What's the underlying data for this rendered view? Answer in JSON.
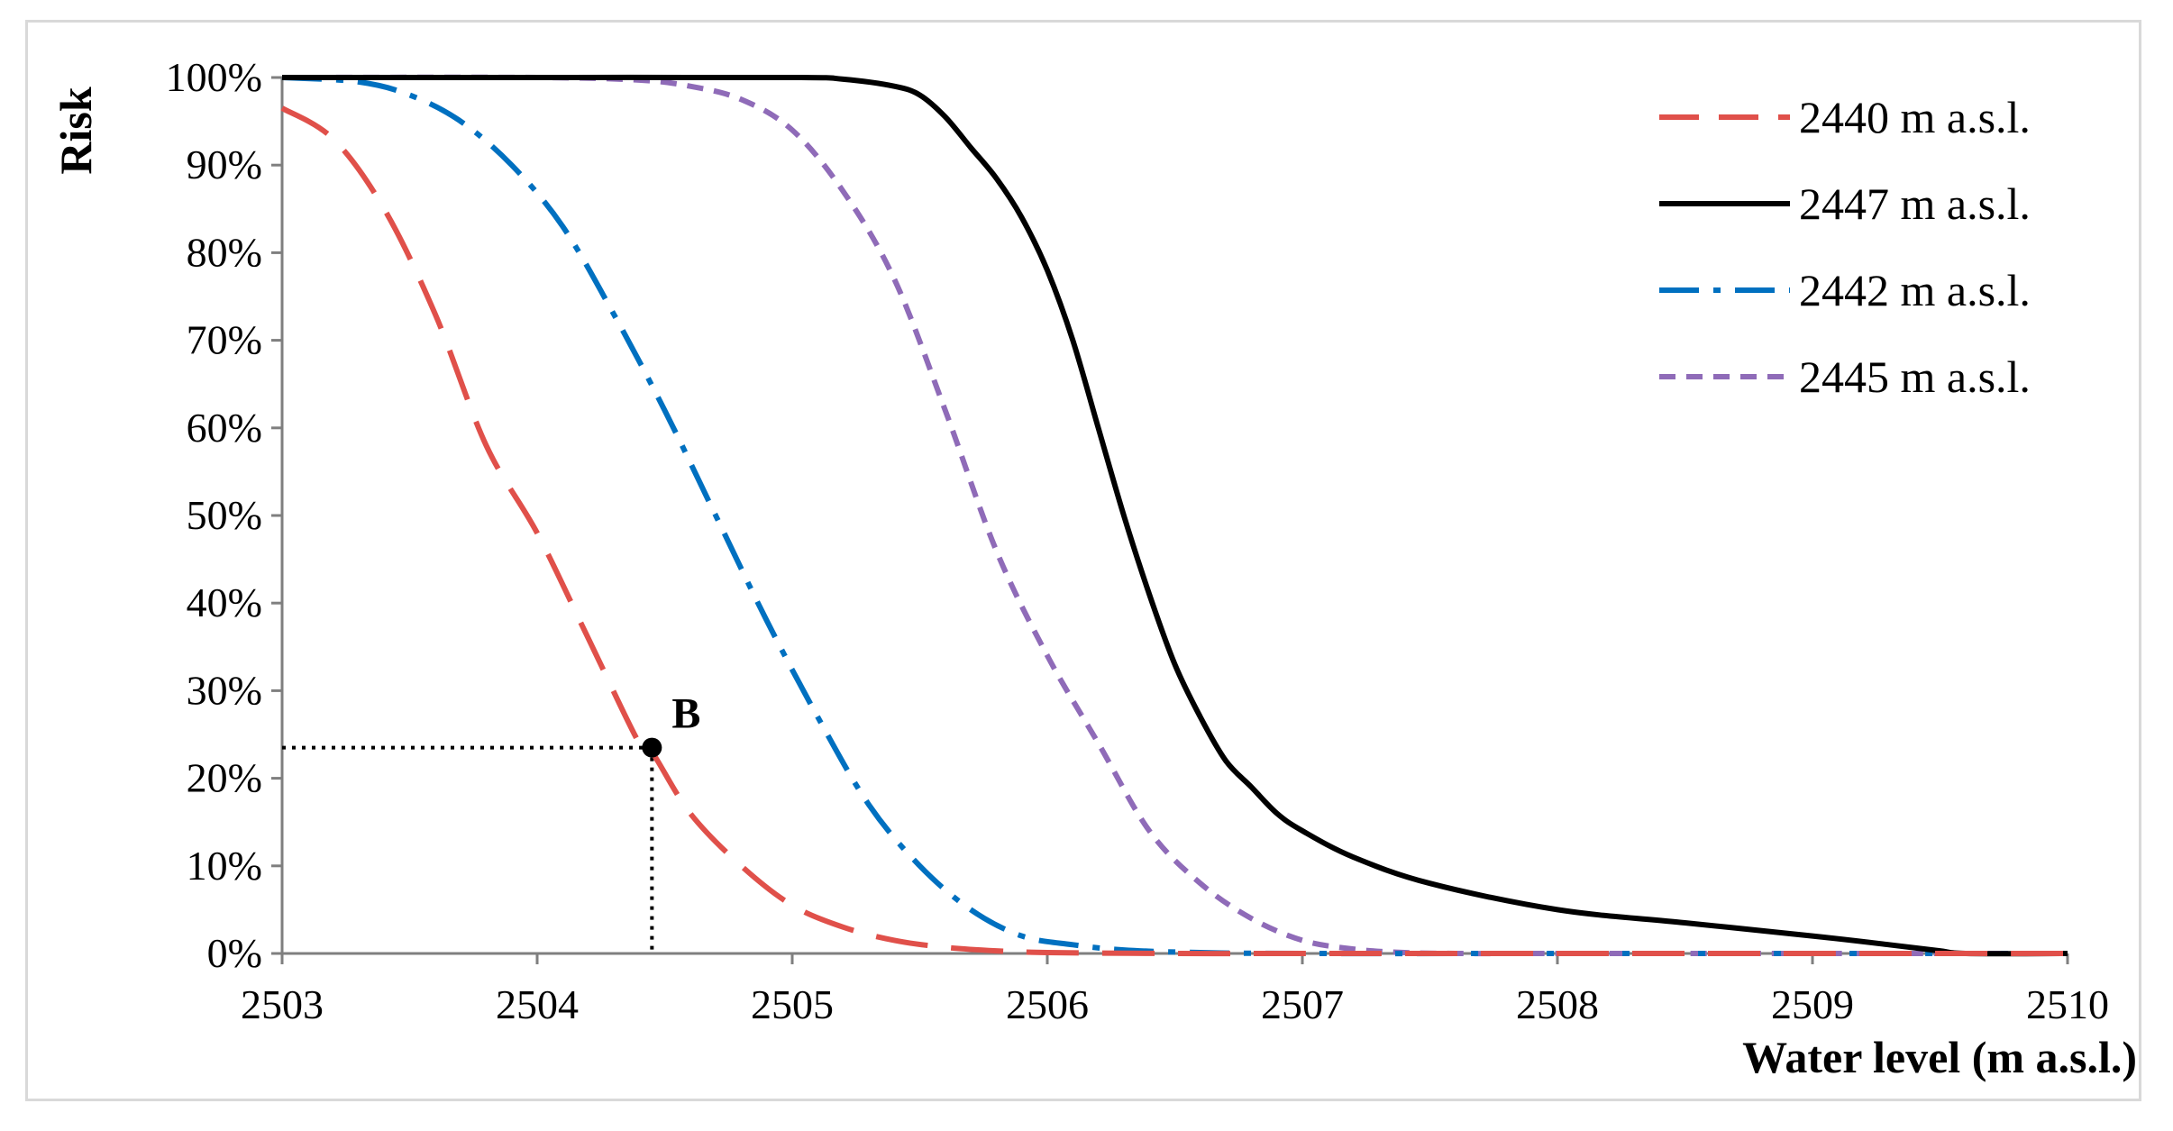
{
  "chart_data": {
    "type": "line",
    "title": "",
    "xlabel": "Water level (m a.s.l.)",
    "ylabel": "Risk",
    "xlim": [
      2503,
      2510
    ],
    "ylim": [
      0,
      100
    ],
    "x_ticks": [
      2503,
      2504,
      2505,
      2506,
      2507,
      2508,
      2509,
      2510
    ],
    "x_tick_labels": [
      "2503",
      "2504",
      "2505",
      "2506",
      "2507",
      "2508",
      "2509",
      "2510"
    ],
    "y_ticks": [
      0,
      10,
      20,
      30,
      40,
      50,
      60,
      70,
      80,
      90,
      100
    ],
    "y_tick_labels": [
      "0%",
      "10%",
      "20%",
      "30%",
      "40%",
      "50%",
      "60%",
      "70%",
      "80%",
      "90%",
      "100%"
    ],
    "grid": false,
    "legend_position": "top-right",
    "series": [
      {
        "name": "2440 m a.s.l.",
        "color": "#e0504a",
        "style": "long-dash",
        "x": [
          2503.0,
          2503.2,
          2503.4,
          2503.6,
          2503.8,
          2504.0,
          2504.2,
          2504.4,
          2504.45,
          2504.6,
          2504.8,
          2505.0,
          2505.2,
          2505.4,
          2505.6,
          2505.8,
          2506.0,
          2506.5,
          2507.0,
          2508.0,
          2509.0,
          2510.0
        ],
        "y": [
          96.5,
          93,
          85,
          73,
          58,
          48,
          36,
          24,
          23,
          16,
          10,
          5.5,
          3,
          1.5,
          0.7,
          0.3,
          0.1,
          0,
          0,
          0,
          0,
          0
        ]
      },
      {
        "name": "2447 m a.s.l.",
        "color": "#000000",
        "style": "solid",
        "x": [
          2503.0,
          2504.0,
          2505.0,
          2505.2,
          2505.4,
          2505.5,
          2505.6,
          2505.7,
          2505.8,
          2505.9,
          2506.0,
          2506.1,
          2506.2,
          2506.3,
          2506.4,
          2506.5,
          2506.6,
          2506.7,
          2506.8,
          2506.9,
          2507.0,
          2507.2,
          2507.5,
          2508.0,
          2508.5,
          2509.0,
          2509.3,
          2509.5,
          2509.6,
          2510.0
        ],
        "y": [
          100,
          100,
          100,
          99.8,
          99,
          98,
          95.5,
          92,
          88.5,
          84,
          78,
          70,
          60,
          50,
          41,
          33,
          27,
          22,
          19,
          16,
          14,
          11,
          8,
          5,
          3.5,
          2,
          1,
          0.3,
          0,
          0
        ]
      },
      {
        "name": "2442 m a.s.l.",
        "color": "#0070c0",
        "style": "dash-dot",
        "x": [
          2503.0,
          2503.3,
          2503.5,
          2503.7,
          2503.9,
          2504.1,
          2504.3,
          2504.5,
          2504.7,
          2504.9,
          2505.1,
          2505.3,
          2505.5,
          2505.7,
          2505.9,
          2506.1,
          2506.3,
          2506.6,
          2507.0,
          2508.0,
          2509.0,
          2510.0
        ],
        "y": [
          100,
          99.5,
          98,
          95,
          90,
          83,
          73,
          62,
          50,
          38,
          27,
          17,
          10,
          5,
          2,
          1,
          0.4,
          0.1,
          0,
          0,
          0,
          0
        ]
      },
      {
        "name": "2445 m a.s.l.",
        "color": "#8f6bb8",
        "style": "short-dash",
        "x": [
          2503.0,
          2504.0,
          2504.4,
          2504.6,
          2504.8,
          2505.0,
          2505.2,
          2505.4,
          2505.6,
          2505.8,
          2506.0,
          2506.2,
          2506.4,
          2506.6,
          2506.8,
          2507.0,
          2507.2,
          2507.4,
          2507.6,
          2508.0,
          2509.0,
          2510.0
        ],
        "y": [
          100,
          100,
          99.7,
          99,
          97.5,
          94,
          87,
          77,
          62,
          46,
          34,
          24,
          14,
          8,
          4,
          1.5,
          0.5,
          0.1,
          0,
          0,
          0,
          0
        ]
      }
    ],
    "annotations": [
      {
        "label": "B",
        "x": 2504.45,
        "y": 23.5
      }
    ]
  }
}
